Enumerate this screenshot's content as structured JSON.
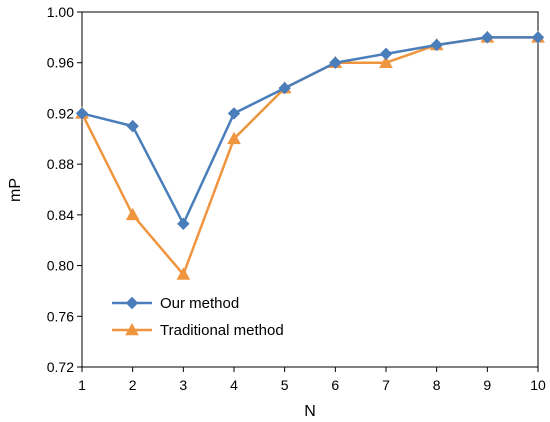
{
  "chart_data": {
    "type": "line",
    "xlabel": "N",
    "ylabel": "mP",
    "x": [
      1,
      2,
      3,
      4,
      5,
      6,
      7,
      8,
      9,
      10
    ],
    "xlim": [
      1,
      10
    ],
    "ylim": [
      0.72,
      1.0
    ],
    "yticks": [
      0.72,
      0.76,
      0.8,
      0.84,
      0.88,
      0.92,
      0.96,
      1.0
    ],
    "ytick_labels": [
      "0.72",
      "0.76",
      "0.80",
      "0.84",
      "0.88",
      "0.92",
      "0.96",
      "1.00"
    ],
    "xtick_labels": [
      "1",
      "2",
      "3",
      "4",
      "5",
      "6",
      "7",
      "8",
      "9",
      "10"
    ],
    "grid": false,
    "legend_position": "bottom-left",
    "series": [
      {
        "name": "Our method",
        "color": "#4a7ebb",
        "marker": "diamond",
        "values": [
          0.92,
          0.91,
          0.833,
          0.92,
          0.94,
          0.96,
          0.967,
          0.974,
          0.98,
          0.98
        ]
      },
      {
        "name": "Traditional method",
        "color": "#f0953f",
        "marker": "triangle",
        "values": [
          0.92,
          0.84,
          0.793,
          0.9,
          0.94,
          0.96,
          0.96,
          0.974,
          0.98,
          0.98
        ]
      }
    ]
  }
}
